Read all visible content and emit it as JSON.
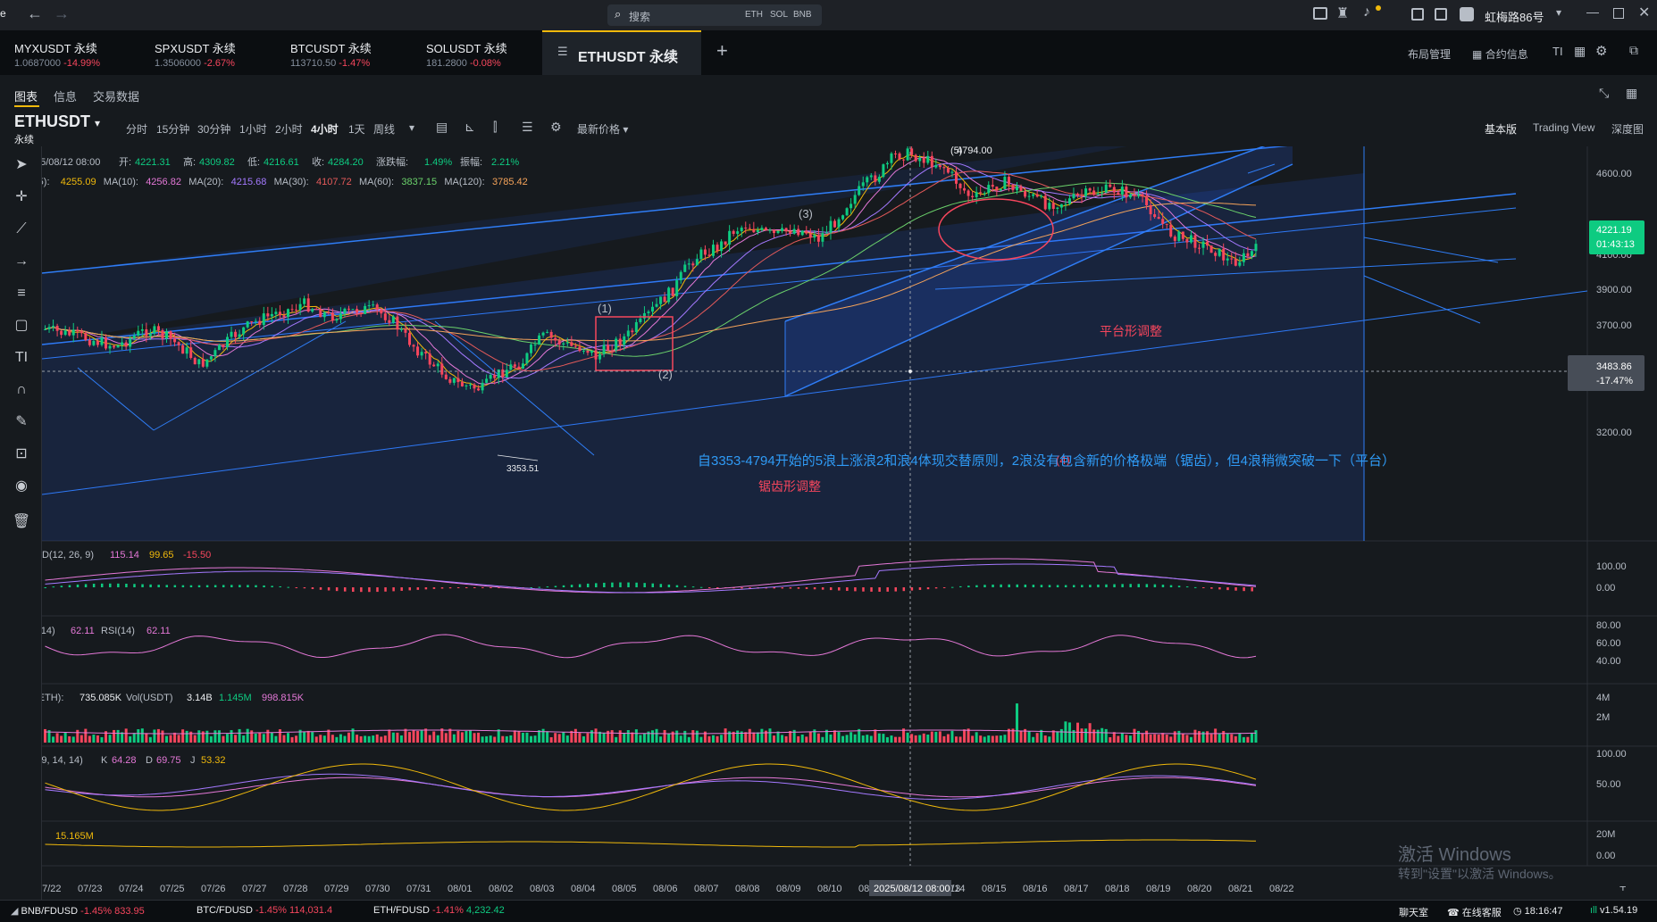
{
  "titlebar": {
    "search_placeholder": "搜索",
    "search_chips": [
      "ETH",
      "SOL",
      "BNB"
    ],
    "user": "虹梅路86号"
  },
  "tabs": [
    {
      "symbol": "MYXUSDT 永续",
      "price": "1.0687000",
      "change": "-14.99%"
    },
    {
      "symbol": "SPXUSDT 永续",
      "price": "1.3506000",
      "change": "-2.67%"
    },
    {
      "symbol": "BTCUSDT 永续",
      "price": "113710.50",
      "change": "-1.47%"
    },
    {
      "symbol": "SOLUSDT 永续",
      "price": "181.2800",
      "change": "-0.08%"
    }
  ],
  "active_tab": "ETHUSDT 永续",
  "header_right": {
    "layout": "布局管理",
    "contract": "合约信息"
  },
  "subtabs": [
    "图表",
    "信息",
    "交易数据"
  ],
  "symbol": {
    "name": "ETHUSDT",
    "type": "永续"
  },
  "timeframes": [
    "分时",
    "15分钟",
    "30分钟",
    "1小时",
    "2小时",
    "4小时",
    "1天",
    "周线"
  ],
  "active_timeframe": "4小时",
  "price_type": "最新价格",
  "view_modes": [
    "基本版",
    "Trading View",
    "深度图"
  ],
  "ohlc": {
    "date": "25/08/12 08:00",
    "open_label": "开:",
    "open": "4221.31",
    "high_label": "高:",
    "high": "4309.82",
    "low_label": "低:",
    "low": "4216.61",
    "close_label": "收:",
    "close": "4284.20",
    "chg_label": "涨跌幅:",
    "chg": "1.49%",
    "amp_label": "振幅:",
    "amp": "2.21%"
  },
  "ma_legend": [
    {
      "label": "(5):",
      "value": "4255.09",
      "color": "#f0b90b"
    },
    {
      "label": "MA(10):",
      "value": "4256.82",
      "color": "#e478d7"
    },
    {
      "label": "MA(20):",
      "value": "4215.68",
      "color": "#a479ff"
    },
    {
      "label": "MA(30):",
      "value": "4107.72",
      "color": "#e55a5a"
    },
    {
      "label": "MA(60):",
      "value": "3837.15",
      "color": "#6bd26b"
    },
    {
      "label": "MA(120):",
      "value": "3785.42",
      "color": "#f5a35a"
    }
  ],
  "price_axis": [
    "4600.00",
    "4300.00",
    "4100.00",
    "3900.00",
    "3700.00",
    "3400.00",
    "3200.00"
  ],
  "price_current": {
    "price": "4221.19",
    "countdown": "01:43:13"
  },
  "price_cursor": {
    "price": "3483.86",
    "pct": "-17.47%"
  },
  "annotations": {
    "w1": "(1)",
    "w2": "(2)",
    "w3": "(3)",
    "w4": "(4)",
    "w5": "(5)",
    "high": "4794.00",
    "low": "3353.51",
    "platform": "平台形调整",
    "zigzag": "锯齿形调整",
    "main": "自3353-4794开始的5浪上涨浪2和浪4体现交替原则，2浪没有包含新的价格极端（锯齿），但4浪稍微突破一下（平台）"
  },
  "macd": {
    "label": "CD(12, 26, 9)",
    "v1": "115.14",
    "v2": "99.65",
    "v3": "-15.50",
    "axis": [
      "100.00",
      "0.00"
    ]
  },
  "rsi": {
    "label": "I(14)",
    "v1": "62.11",
    "label2": "RSI(14)",
    "v2": "62.11",
    "axis": [
      "80.00",
      "60.00",
      "40.00"
    ]
  },
  "vol": {
    "label": "(ETH):",
    "v1": "735.085K",
    "label2": "Vol(USDT)",
    "v2": "3.14B",
    "v3": "1.145M",
    "v4": "998.815K",
    "axis": [
      "4M",
      "2M"
    ]
  },
  "kdj": {
    "label": ")(9, 14, 14)",
    "k_label": "K",
    "k": "64.28",
    "d_label": "D",
    "d": "69.75",
    "j_label": "J",
    "j": "53.32",
    "axis": [
      "100.00",
      "50.00"
    ]
  },
  "oi": {
    "value": "15.165M",
    "axis": [
      "20M",
      "0.00"
    ]
  },
  "time_axis": [
    "07/22",
    "07/23",
    "07/24",
    "07/25",
    "07/26",
    "07/27",
    "07/28",
    "07/29",
    "07/30",
    "07/31",
    "08/01",
    "08/02",
    "08/03",
    "08/04",
    "08/05",
    "08/06",
    "08/07",
    "08/08",
    "08/09",
    "08/10",
    "08/",
    "13",
    "08/14",
    "08/15",
    "08/16",
    "08/17",
    "08/18",
    "08/19",
    "08/20",
    "08/21",
    "08/22"
  ],
  "crosshair_time": "2025/08/12 08:00",
  "watermark": {
    "line1": "激活 Windows",
    "line2": "转到\"设置\"以激活 Windows。"
  },
  "statusbar": {
    "tickers": [
      {
        "sym": "BNB/FDUSD",
        "chg": "-1.45%",
        "price": "833.95"
      },
      {
        "sym": "BTC/FDUSD",
        "chg": "-1.45%",
        "price": "114,031.4"
      },
      {
        "sym": "ETH/FDUSD",
        "chg": "-1.41%",
        "price": "4,232.42"
      }
    ],
    "chat": "聊天室",
    "support": "在线客服",
    "time": "18:16:47",
    "version": "v1.54.19"
  },
  "colors": {
    "up": "#0ecb81",
    "down": "#f6465d",
    "accent": "#f0b90b",
    "bg": "#161a1e"
  }
}
